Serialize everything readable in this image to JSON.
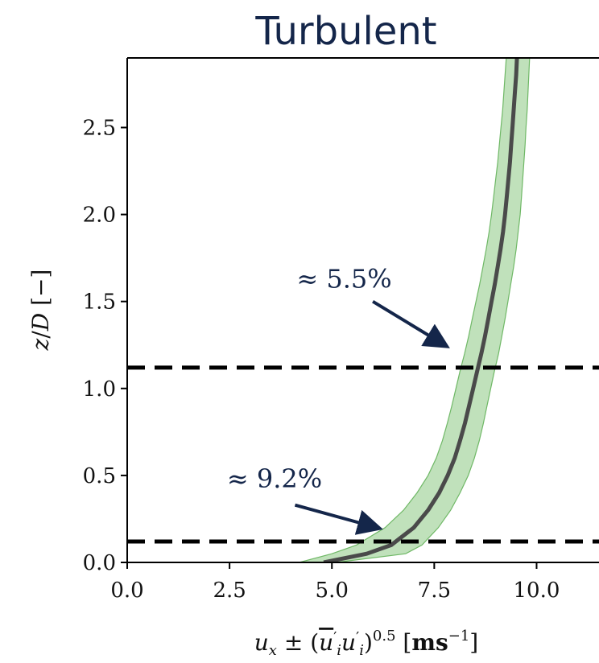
{
  "chart_data": {
    "type": "line",
    "title": "Turbulent",
    "xlabel": "u_x ± (u_i′u_i′)^0.5 [ms^-1]",
    "ylabel": "z/D [−]",
    "xlim": [
      0.0,
      11.8
    ],
    "ylim": [
      0.0,
      2.9
    ],
    "xticks": [
      "0.0",
      "2.5",
      "5.0",
      "7.5",
      "10.0"
    ],
    "yticks": [
      "0.0",
      "0.5",
      "1.0",
      "1.5",
      "2.0",
      "2.5"
    ],
    "grid": false,
    "series": [
      {
        "style": "mean-line",
        "color": "#4a4a4a",
        "band_color": "#8cc884",
        "z": [
          0.0,
          0.05,
          0.1,
          0.2,
          0.3,
          0.4,
          0.5,
          0.6,
          0.7,
          0.8,
          0.9,
          1.0,
          1.1,
          1.2,
          1.3,
          1.4,
          1.5,
          1.6,
          1.7,
          1.8,
          1.9,
          2.0,
          2.1,
          2.2,
          2.3,
          2.4,
          2.5,
          2.6,
          2.7,
          2.8,
          2.9
        ],
        "mean": [
          4.8,
          5.85,
          6.45,
          7.0,
          7.35,
          7.62,
          7.83,
          8.0,
          8.13,
          8.25,
          8.35,
          8.45,
          8.55,
          8.65,
          8.74,
          8.82,
          8.9,
          8.98,
          9.05,
          9.12,
          9.18,
          9.23,
          9.27,
          9.31,
          9.35,
          9.38,
          9.41,
          9.44,
          9.47,
          9.5,
          9.52
        ],
        "lower": [
          4.2,
          5.0,
          5.6,
          6.3,
          6.75,
          7.08,
          7.35,
          7.55,
          7.7,
          7.82,
          7.93,
          8.03,
          8.13,
          8.24,
          8.34,
          8.43,
          8.52,
          8.61,
          8.69,
          8.77,
          8.84,
          8.9,
          8.95,
          9.0,
          9.05,
          9.09,
          9.13,
          9.17,
          9.2,
          9.23,
          9.26
        ],
        "upper": [
          5.1,
          6.8,
          7.2,
          7.6,
          7.9,
          8.13,
          8.33,
          8.48,
          8.6,
          8.7,
          8.79,
          8.88,
          8.97,
          9.07,
          9.15,
          9.23,
          9.3,
          9.37,
          9.44,
          9.5,
          9.55,
          9.6,
          9.63,
          9.66,
          9.69,
          9.72,
          9.74,
          9.77,
          9.79,
          9.81,
          9.83
        ]
      }
    ],
    "hlines": [
      {
        "y": 1.12,
        "style": "dashed",
        "color": "#000000"
      },
      {
        "y": 0.12,
        "style": "dashed",
        "color": "#000000"
      }
    ],
    "annotations": [
      {
        "text": "≈ 5.5%",
        "arrow_to": [
          7.75,
          1.25
        ]
      },
      {
        "text": "≈ 9.2%",
        "arrow_to": [
          6.1,
          0.2
        ]
      }
    ]
  }
}
